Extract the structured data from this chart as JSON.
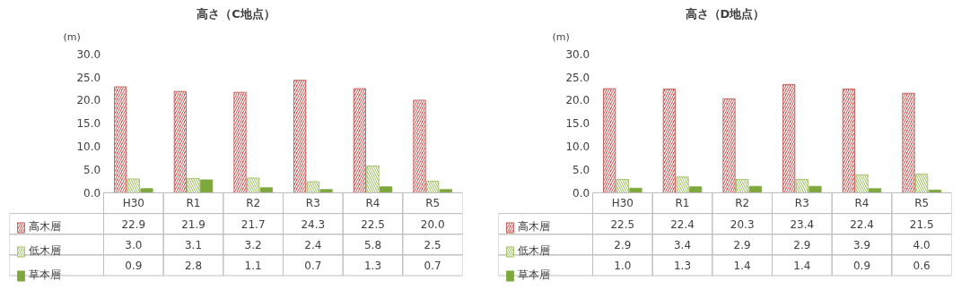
{
  "chart_data": [
    {
      "type": "bar",
      "title": "高さ（C地点）",
      "ylabel": "(m)",
      "categories": [
        "H30",
        "R1",
        "R2",
        "R3",
        "R4",
        "R5"
      ],
      "ylim": [
        0,
        30
      ],
      "yticks": [
        {
          "value": 0,
          "label": "0.0"
        },
        {
          "value": 5,
          "label": "5.0"
        },
        {
          "value": 10,
          "label": "10.0"
        },
        {
          "value": 15,
          "label": "15.0"
        },
        {
          "value": 20,
          "label": "20.0"
        },
        {
          "value": 25,
          "label": "25.0"
        },
        {
          "value": 30,
          "label": "30.0"
        }
      ],
      "grid": false,
      "legend": "bottom",
      "series": [
        {
          "name": "高木層",
          "color": "#c0504d",
          "values": [
            22.9,
            21.9,
            21.7,
            24.3,
            22.5,
            20.0
          ],
          "value_labels": [
            "22.9",
            "21.9",
            "21.7",
            "24.3",
            "22.5",
            "20.0"
          ]
        },
        {
          "name": "低木層",
          "color": "#9bbb59",
          "values": [
            3.0,
            3.1,
            3.2,
            2.4,
            5.8,
            2.5
          ],
          "value_labels": [
            "3.0",
            "3.1",
            "3.2",
            "2.4",
            "5.8",
            "2.5"
          ]
        },
        {
          "name": "草本層",
          "color": "#7ea83e",
          "values": [
            0.9,
            2.8,
            1.1,
            0.7,
            1.3,
            0.7
          ],
          "value_labels": [
            "0.9",
            "2.8",
            "1.1",
            "0.7",
            "1.3",
            "0.7"
          ]
        }
      ]
    },
    {
      "type": "bar",
      "title": "高さ（D地点）",
      "ylabel": "(m)",
      "categories": [
        "H30",
        "R1",
        "R2",
        "R3",
        "R4",
        "R5"
      ],
      "ylim": [
        0,
        30
      ],
      "yticks": [
        {
          "value": 0,
          "label": "0.0"
        },
        {
          "value": 5,
          "label": "5.0"
        },
        {
          "value": 10,
          "label": "10.0"
        },
        {
          "value": 15,
          "label": "15.0"
        },
        {
          "value": 20,
          "label": "20.0"
        },
        {
          "value": 25,
          "label": "25.0"
        },
        {
          "value": 30,
          "label": "30.0"
        }
      ],
      "grid": false,
      "legend": "bottom",
      "series": [
        {
          "name": "高木層",
          "color": "#c0504d",
          "values": [
            22.5,
            22.4,
            20.3,
            23.4,
            22.4,
            21.5
          ],
          "value_labels": [
            "22.5",
            "22.4",
            "20.3",
            "23.4",
            "22.4",
            "21.5"
          ]
        },
        {
          "name": "低木層",
          "color": "#9bbb59",
          "values": [
            2.9,
            3.4,
            2.9,
            2.9,
            3.9,
            4.0
          ],
          "value_labels": [
            "2.9",
            "3.4",
            "2.9",
            "2.9",
            "3.9",
            "4.0"
          ]
        },
        {
          "name": "草本層",
          "color": "#7ea83e",
          "values": [
            1.0,
            1.3,
            1.4,
            1.4,
            0.9,
            0.6
          ],
          "value_labels": [
            "1.0",
            "1.3",
            "1.4",
            "1.4",
            "0.9",
            "0.6"
          ]
        }
      ]
    }
  ]
}
